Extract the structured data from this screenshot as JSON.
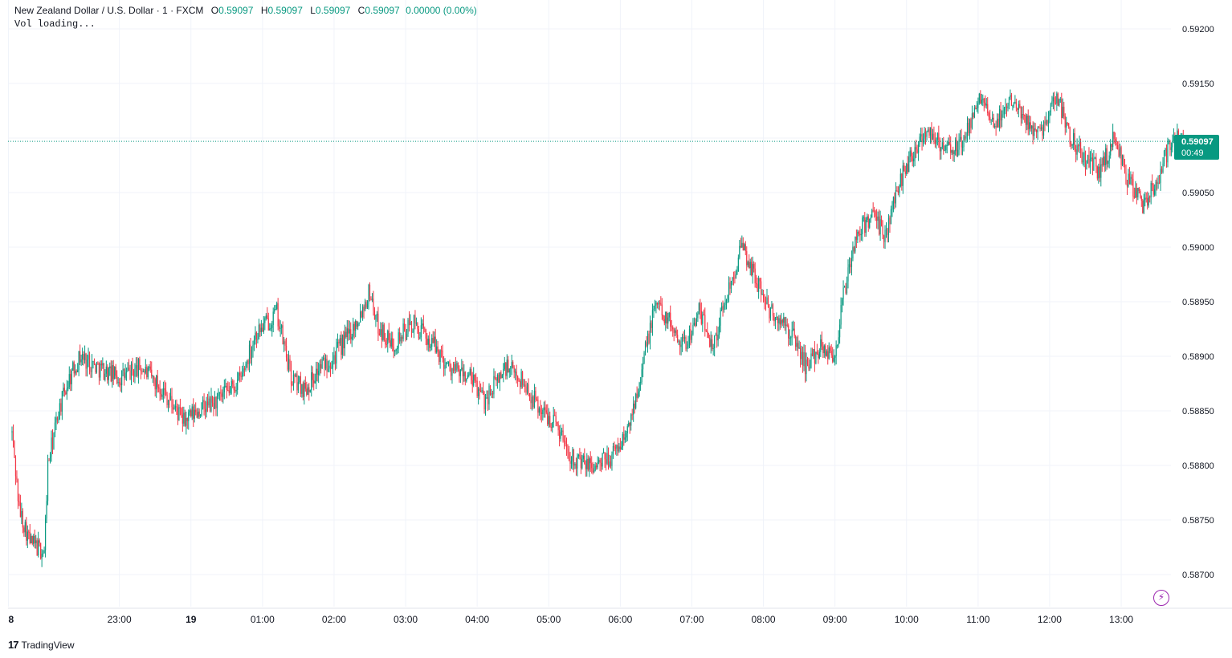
{
  "header": {
    "symbol": "New Zealand Dollar / U.S. Dollar · 1 · FXCM",
    "open_label": "O",
    "open": "0.59097",
    "high_label": "H",
    "high": "0.59097",
    "low_label": "L",
    "low": "0.59097",
    "close_label": "C",
    "close": "0.59097",
    "change": "0.00000 (0.00%)",
    "vol_text": "Vol loading..."
  },
  "price_tag": {
    "price": "0.59097",
    "countdown": "00:49"
  },
  "brand": {
    "name": "TradingView",
    "logo": "17"
  },
  "icons": {
    "bolt": "lightning-icon"
  },
  "colors": {
    "up": "#089981",
    "down": "#f23645",
    "grid": "#f0f3fa",
    "text": "#131722",
    "accent": "#9c27b0"
  },
  "chart_data": {
    "type": "candlestick",
    "title": "New Zealand Dollar / U.S. Dollar · 1 · FXCM",
    "ylim": [
      0.5867,
      0.5921
    ],
    "y_ticks": [
      "0.59200",
      "0.59150",
      "0.59100",
      "0.59050",
      "0.59000",
      "0.58950",
      "0.58900",
      "0.58850",
      "0.58800",
      "0.58750",
      "0.58700"
    ],
    "x_ticks": [
      {
        "label": "8",
        "t": -0.05,
        "bold": true
      },
      {
        "label": "23:00",
        "t": 1.5
      },
      {
        "label": "19",
        "t": 2.5,
        "bold": true
      },
      {
        "label": "01:00",
        "t": 3.5
      },
      {
        "label": "02:00",
        "t": 4.5
      },
      {
        "label": "03:00",
        "t": 5.5
      },
      {
        "label": "04:00",
        "t": 6.5
      },
      {
        "label": "05:00",
        "t": 7.5
      },
      {
        "label": "06:00",
        "t": 8.5
      },
      {
        "label": "07:00",
        "t": 9.5
      },
      {
        "label": "08:00",
        "t": 10.5
      },
      {
        "label": "09:00",
        "t": 11.5
      },
      {
        "label": "10:00",
        "t": 12.5
      },
      {
        "label": "11:00",
        "t": 13.5
      },
      {
        "label": "12:00",
        "t": 14.5
      },
      {
        "label": "13:00",
        "t": 15.5
      }
    ],
    "last_price": 0.59097,
    "path": [
      [
        0.0,
        0.5883
      ],
      [
        0.1,
        0.5876
      ],
      [
        0.25,
        0.5873
      ],
      [
        0.35,
        0.58725
      ],
      [
        0.45,
        0.5872
      ],
      [
        0.5,
        0.588
      ],
      [
        0.65,
        0.5885
      ],
      [
        0.8,
        0.5888
      ],
      [
        0.95,
        0.589
      ],
      [
        1.2,
        0.5889
      ],
      [
        1.5,
        0.5888
      ],
      [
        1.8,
        0.5889
      ],
      [
        2.1,
        0.5887
      ],
      [
        2.4,
        0.5884
      ],
      [
        2.6,
        0.5885
      ],
      [
        2.9,
        0.5886
      ],
      [
        3.2,
        0.5888
      ],
      [
        3.4,
        0.5892
      ],
      [
        3.7,
        0.5894
      ],
      [
        3.9,
        0.5888
      ],
      [
        4.1,
        0.5887
      ],
      [
        4.3,
        0.5889
      ],
      [
        4.5,
        0.589
      ],
      [
        4.8,
        0.5893
      ],
      [
        5.0,
        0.5896
      ],
      [
        5.1,
        0.5893
      ],
      [
        5.3,
        0.5891
      ],
      [
        5.6,
        0.5893
      ],
      [
        5.9,
        0.5891
      ],
      [
        6.1,
        0.5889
      ],
      [
        6.4,
        0.5888
      ],
      [
        6.6,
        0.5886
      ],
      [
        6.9,
        0.5889
      ],
      [
        7.1,
        0.5888
      ],
      [
        7.4,
        0.5885
      ],
      [
        7.6,
        0.5884
      ],
      [
        7.8,
        0.5881
      ],
      [
        8.0,
        0.588
      ],
      [
        8.2,
        0.588
      ],
      [
        8.4,
        0.5881
      ],
      [
        8.6,
        0.5883
      ],
      [
        8.8,
        0.5889
      ],
      [
        9.0,
        0.5895
      ],
      [
        9.2,
        0.5893
      ],
      [
        9.4,
        0.5891
      ],
      [
        9.6,
        0.5894
      ],
      [
        9.8,
        0.5891
      ],
      [
        10.0,
        0.5896
      ],
      [
        10.2,
        0.59
      ],
      [
        10.4,
        0.5897
      ],
      [
        10.6,
        0.5894
      ],
      [
        10.9,
        0.5892
      ],
      [
        11.1,
        0.5889
      ],
      [
        11.3,
        0.5891
      ],
      [
        11.5,
        0.589
      ],
      [
        11.6,
        0.5895
      ],
      [
        11.8,
        0.5901
      ],
      [
        12.0,
        0.5903
      ],
      [
        12.2,
        0.5901
      ],
      [
        12.4,
        0.5906
      ],
      [
        12.6,
        0.5909
      ],
      [
        12.8,
        0.5911
      ],
      [
        13.0,
        0.5909
      ],
      [
        13.2,
        0.5909
      ],
      [
        13.4,
        0.5911
      ],
      [
        13.5,
        0.5914
      ],
      [
        13.7,
        0.5911
      ],
      [
        13.9,
        0.5913
      ],
      [
        14.0,
        0.5914
      ],
      [
        14.2,
        0.5911
      ],
      [
        14.4,
        0.5911
      ],
      [
        14.6,
        0.5914
      ],
      [
        14.8,
        0.591
      ],
      [
        15.0,
        0.5908
      ],
      [
        15.2,
        0.5907
      ],
      [
        15.4,
        0.591
      ],
      [
        15.6,
        0.5906
      ],
      [
        15.8,
        0.5904
      ],
      [
        16.0,
        0.5906
      ],
      [
        16.2,
        0.591
      ],
      [
        16.4,
        0.59097
      ]
    ]
  }
}
